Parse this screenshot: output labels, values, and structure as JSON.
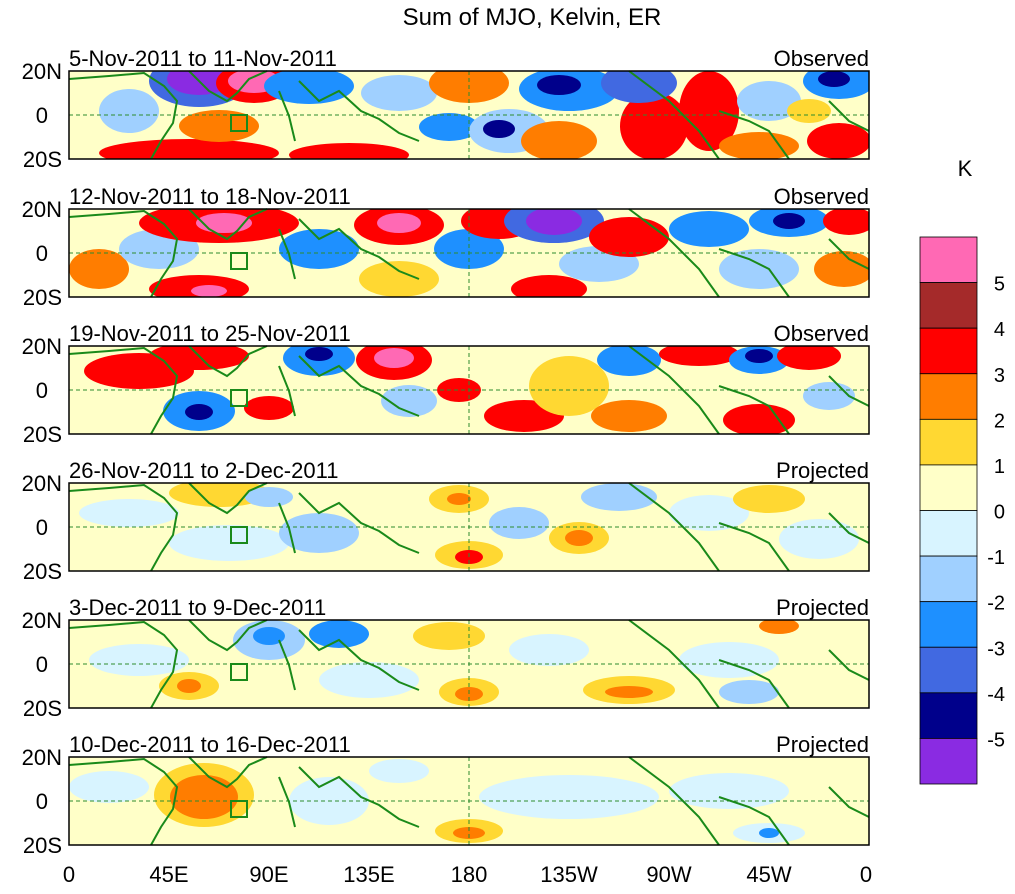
{
  "figure": {
    "title": "Sum of MJO, Kelvin, ER",
    "unit": "K",
    "lat_labels": [
      "20N",
      "0",
      "20S"
    ],
    "lon_labels": [
      "0",
      "45E",
      "90E",
      "135E",
      "180",
      "135W",
      "90W",
      "45W",
      "0"
    ]
  },
  "panels": [
    {
      "date_range": "5-Nov-2011 to 11-Nov-2011",
      "status": "Observed"
    },
    {
      "date_range": "12-Nov-2011 to 18-Nov-2011",
      "status": "Observed"
    },
    {
      "date_range": "19-Nov-2011 to 25-Nov-2011",
      "status": "Observed"
    },
    {
      "date_range": "26-Nov-2011 to 2-Dec-2011",
      "status": "Projected"
    },
    {
      "date_range": "3-Dec-2011 to 9-Dec-2011",
      "status": "Projected"
    },
    {
      "date_range": "10-Dec-2011 to 16-Dec-2011",
      "status": "Projected"
    }
  ],
  "colorbar": {
    "colors": [
      "#8a2be2",
      "#00008b",
      "#4169e1",
      "#1e90ff",
      "#a0d0ff",
      "#d8f4ff",
      "#ffffc8",
      "#ffd832",
      "#ff7d00",
      "#ff0000",
      "#a52a2a",
      "#ff69b4"
    ],
    "labels": [
      "-5",
      "-4",
      "-3",
      "-2",
      "-1",
      "0",
      "1",
      "2",
      "3",
      "4",
      "5"
    ]
  }
}
